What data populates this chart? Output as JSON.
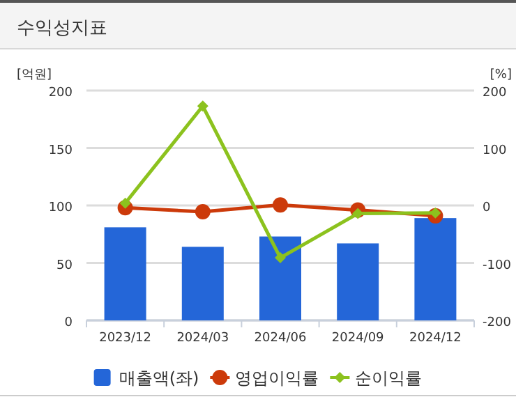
{
  "chart_data": {
    "type": "bar",
    "title": "수익성지표",
    "ylabel": "[억원]",
    "y2label": "[%]",
    "categories": [
      "2023/12",
      "2024/03",
      "2024/06",
      "2024/09",
      "2024/12"
    ],
    "series": [
      {
        "name": "매출액(좌)",
        "color": "#2466d8",
        "values": [
          81,
          64,
          73,
          67,
          89
        ]
      },
      {
        "name": "영업이익률",
        "type": "line",
        "axis": "y2",
        "marker": "circle",
        "color": "#cc3a0a",
        "values": [
          -4,
          -11,
          1,
          -8,
          -18
        ]
      },
      {
        "name": "순이익률",
        "type": "line",
        "axis": "y2",
        "marker": "diamond",
        "color": "#8cc21e",
        "values": [
          4,
          173,
          -91,
          -14,
          -13
        ]
      }
    ],
    "ylim": [
      0,
      200
    ],
    "yticks": [
      0,
      50,
      100,
      150,
      200
    ],
    "y2lim": [
      -200,
      200
    ],
    "y2ticks": [
      -200,
      -100,
      0,
      100,
      200
    ],
    "grid": "y",
    "legend": "bottom"
  }
}
